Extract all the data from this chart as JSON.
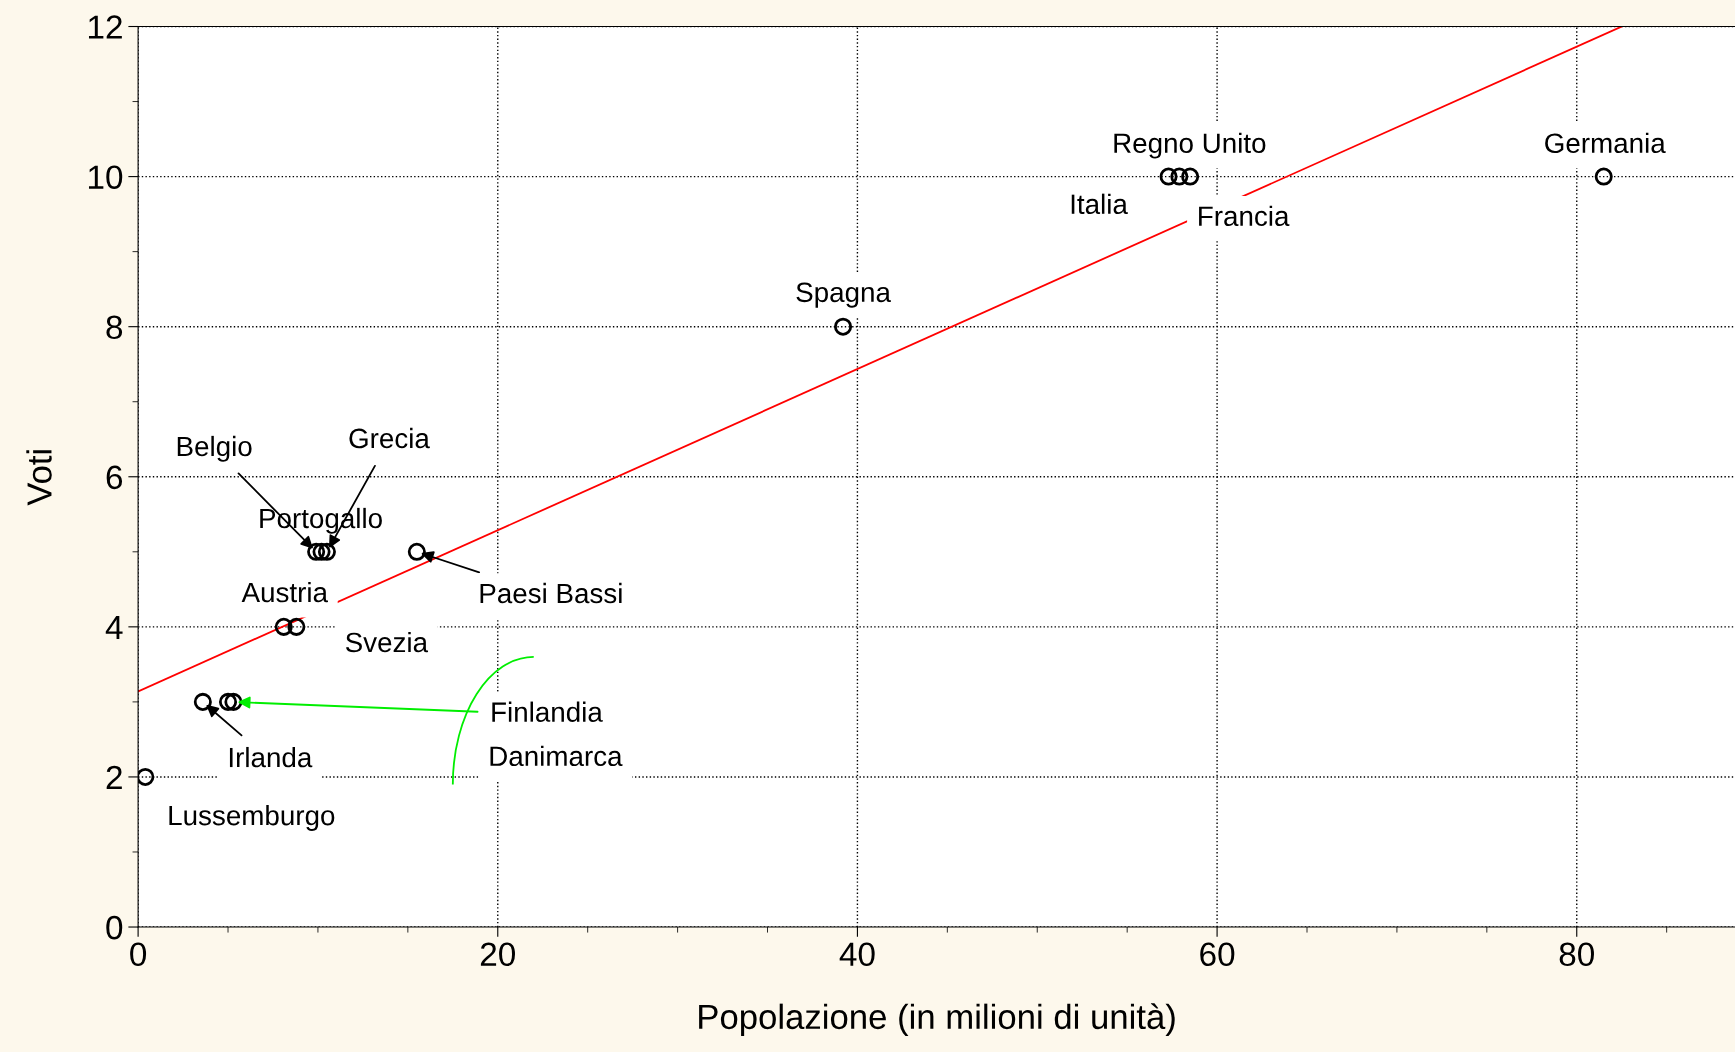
{
  "chart_data": {
    "type": "scatter",
    "xlabel": "Popolazione (in milioni di unità)",
    "ylabel": "Voti",
    "xlim": [
      0,
      88.8
    ],
    "ylim": [
      0,
      12
    ],
    "xticks": [
      0,
      20,
      40,
      60,
      80
    ],
    "yticks": [
      0,
      2,
      4,
      6,
      8,
      10,
      12
    ],
    "grid": true,
    "series": [
      {
        "marker": "circle",
        "color": "#000000",
        "x": [
          0.4,
          3.6,
          5.0,
          5.3,
          8.1,
          8.8,
          9.9,
          10.2,
          10.5,
          15.5,
          39.2,
          57.3,
          57.9,
          58.5,
          81.5
        ],
        "values": [
          2,
          3,
          3,
          3,
          4,
          4,
          5,
          5,
          5,
          5,
          8,
          10,
          10,
          10,
          10
        ]
      },
      {
        "type": "line",
        "color": "#ff0000",
        "x": [
          0,
          82.5
        ],
        "values": [
          3.14,
          12
        ]
      }
    ],
    "annotations": [
      {
        "text": "Lussemburgo",
        "x": 0.4,
        "y": 2
      },
      {
        "text": "Irlanda",
        "x": 3.6,
        "y": 3
      },
      {
        "text": "Finlandia",
        "x": 5.3,
        "y": 3
      },
      "Danimarca",
      {
        "text": "Austria",
        "x": 8.1,
        "y": 4
      },
      {
        "text": "Svezia",
        "x": 8.8,
        "y": 4
      },
      {
        "text": "Belgio",
        "x": 9.9,
        "y": 5
      },
      {
        "text": "Portogallo",
        "x": 10.2,
        "y": 5
      },
      {
        "text": "Grecia",
        "x": 10.5,
        "y": 5
      },
      {
        "text": "Paesi Bassi",
        "x": 15.5,
        "y": 5
      },
      {
        "text": "Spagna",
        "x": 39.2,
        "y": 8
      },
      {
        "text": "Italia",
        "x": 57.3,
        "y": 10
      },
      {
        "text": "Regno Unito",
        "x": 57.9,
        "y": 10
      },
      {
        "text": "Francia",
        "x": 58.5,
        "y": 10
      },
      {
        "text": "Germania",
        "x": 81.5,
        "y": 10
      }
    ]
  }
}
